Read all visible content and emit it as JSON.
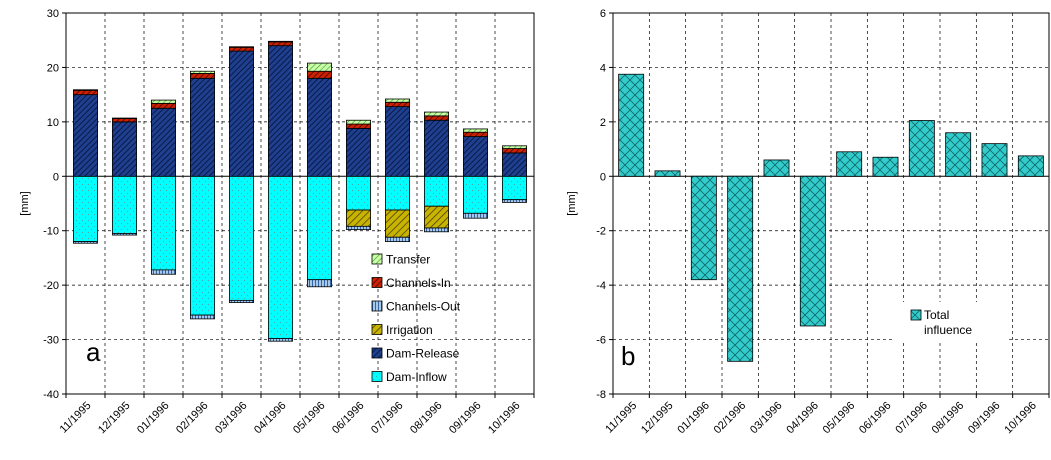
{
  "chart_data": [
    {
      "type": "bar",
      "stacked": true,
      "panel_label": "a",
      "ylabel": "[mm]",
      "ylim": [
        -40,
        30
      ],
      "yticks": [
        -40,
        -30,
        -20,
        -10,
        0,
        10,
        20,
        30
      ],
      "grid": true,
      "legend_position": "bottom-right",
      "categories": [
        "11/1995",
        "12/1995",
        "01/1996",
        "02/1996",
        "03/1996",
        "04/1996",
        "05/1996",
        "06/1996",
        "07/1996",
        "08/1996",
        "09/1996",
        "10/1996"
      ],
      "series": [
        {
          "name": "Dam-Inflow",
          "color": "#00ffff",
          "pattern": "dots",
          "values": [
            -12,
            -10.5,
            -17.2,
            -25.5,
            -22.8,
            -29.8,
            -19,
            -6.2,
            -6.2,
            -5.5,
            -6.8,
            -4.3
          ]
        },
        {
          "name": "Dam-Release",
          "color": "#1f3f8f",
          "pattern": "diagonal-dense",
          "values": [
            15,
            10,
            12.5,
            18,
            23,
            24,
            18,
            8.8,
            12.8,
            10.3,
            7.3,
            4.3
          ]
        },
        {
          "name": "Irrigation",
          "color": "#c8b400",
          "pattern": "diagonal",
          "values": [
            0,
            0,
            0,
            0,
            0,
            0,
            0,
            -3,
            -5,
            -4,
            0,
            0
          ]
        },
        {
          "name": "Channels-Out",
          "color": "#a8c8e8",
          "pattern": "vertical",
          "values": [
            -0.3,
            -0.3,
            -0.8,
            -0.7,
            -0.4,
            -0.5,
            -1.3,
            -0.6,
            -0.8,
            -0.7,
            -0.9,
            -0.5
          ]
        },
        {
          "name": "Channels-In",
          "color": "#cc2200",
          "pattern": "diagonal",
          "values": [
            0.8,
            0.6,
            0.9,
            0.9,
            0.7,
            0.7,
            1.3,
            0.8,
            0.8,
            0.8,
            0.8,
            0.8
          ]
        },
        {
          "name": "Transfer",
          "color": "#66cc44",
          "pattern": "diagonal-light",
          "values": [
            0.1,
            0.1,
            0.6,
            0.4,
            0.1,
            0.1,
            1.5,
            0.7,
            0.6,
            0.7,
            0.6,
            0.5
          ]
        }
      ]
    },
    {
      "type": "bar",
      "panel_label": "b",
      "ylabel": "[mm]",
      "ylim": [
        -8,
        6
      ],
      "yticks": [
        -8,
        -6,
        -4,
        -2,
        0,
        2,
        4,
        6
      ],
      "grid": true,
      "legend_position": "lower-right",
      "categories": [
        "11/1995",
        "12/1995",
        "01/1996",
        "02/1996",
        "03/1996",
        "04/1996",
        "05/1996",
        "06/1996",
        "07/1996",
        "08/1996",
        "09/1996",
        "10/1996"
      ],
      "series": [
        {
          "name": "Total influence",
          "legend_lines": [
            "Total",
            "influence"
          ],
          "color": "#33cccc",
          "pattern": "crosshatch",
          "values": [
            3.75,
            0.2,
            -3.8,
            -6.8,
            0.6,
            -5.5,
            0.9,
            0.7,
            2.05,
            1.6,
            1.2,
            0.75
          ]
        }
      ]
    }
  ]
}
